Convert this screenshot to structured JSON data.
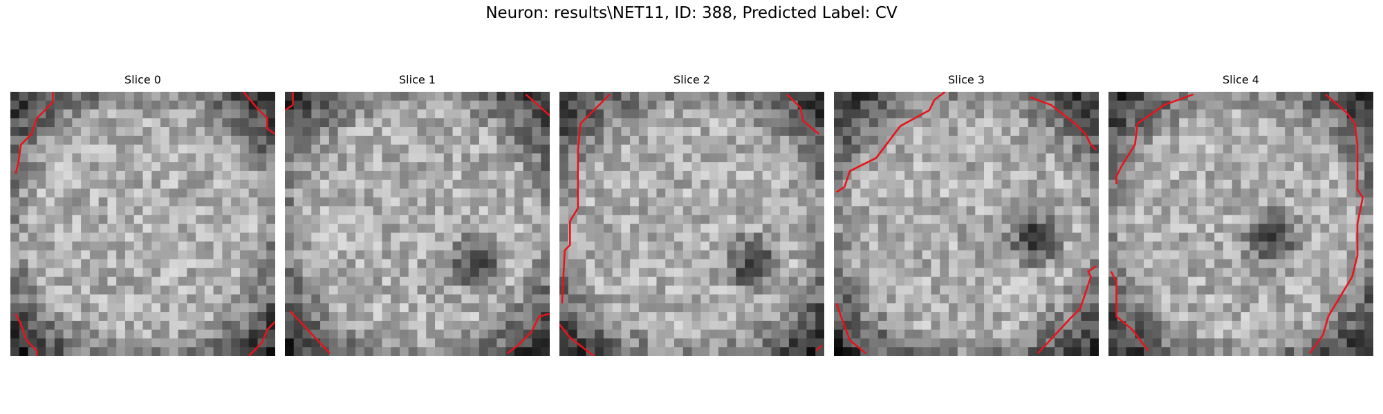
{
  "figure": {
    "title": "Neuron: results\\NET11, ID: 388, Predicted Label: CV",
    "contour_color": "#e8141a",
    "colormap": "gray",
    "panels": [
      {
        "title": "Slice 0",
        "dark_spot": null,
        "contours": [
          [
            [
              0.16,
              0.0
            ],
            [
              0.16,
              0.04
            ],
            [
              0.1,
              0.1
            ],
            [
              0.08,
              0.16
            ],
            [
              0.04,
              0.2
            ],
            [
              0.03,
              0.27
            ],
            [
              0.02,
              0.31
            ]
          ],
          [
            [
              0.88,
              0.0
            ],
            [
              0.93,
              0.06
            ],
            [
              0.97,
              0.1
            ],
            [
              0.97,
              0.14
            ],
            [
              1.0,
              0.16
            ]
          ],
          [
            [
              0.02,
              0.84
            ],
            [
              0.04,
              0.88
            ],
            [
              0.06,
              0.94
            ],
            [
              0.1,
              0.98
            ],
            [
              0.1,
              1.0
            ]
          ],
          [
            [
              0.9,
              1.0
            ],
            [
              0.95,
              0.95
            ],
            [
              0.97,
              0.9
            ],
            [
              1.0,
              0.87
            ]
          ]
        ]
      },
      {
        "title": "Slice 1",
        "dark_spot": [
          0.72,
          0.65
        ],
        "contours": [
          [
            [
              0.03,
              0.0
            ],
            [
              0.03,
              0.05
            ],
            [
              0.0,
              0.07
            ]
          ],
          [
            [
              0.91,
              0.01
            ],
            [
              1.0,
              0.09
            ]
          ],
          [
            [
              0.02,
              0.83
            ],
            [
              0.17,
              0.99
            ]
          ],
          [
            [
              0.84,
              0.99
            ],
            [
              0.88,
              0.96
            ],
            [
              0.93,
              0.91
            ],
            [
              0.96,
              0.85
            ],
            [
              1.0,
              0.84
            ]
          ]
        ]
      },
      {
        "title": "Slice 2",
        "dark_spot": [
          0.73,
          0.65
        ],
        "contours": [
          [
            [
              0.19,
              0.01
            ],
            [
              0.08,
              0.12
            ],
            [
              0.07,
              0.22
            ],
            [
              0.07,
              0.44
            ],
            [
              0.04,
              0.49
            ],
            [
              0.04,
              0.58
            ],
            [
              0.02,
              0.6
            ],
            [
              0.01,
              0.8
            ]
          ],
          [
            [
              0.86,
              0.01
            ],
            [
              0.91,
              0.06
            ],
            [
              0.92,
              0.11
            ],
            [
              0.98,
              0.16
            ]
          ],
          [
            [
              0.0,
              0.88
            ],
            [
              0.04,
              0.93
            ],
            [
              0.13,
              1.0
            ]
          ],
          [
            [
              0.97,
              0.98
            ],
            [
              0.99,
              0.96
            ]
          ]
        ]
      },
      {
        "title": "Slice 3",
        "dark_spot": [
          0.76,
          0.55
        ],
        "contours": [
          [
            [
              0.42,
              0.0
            ],
            [
              0.38,
              0.03
            ],
            [
              0.36,
              0.07
            ],
            [
              0.25,
              0.13
            ],
            [
              0.16,
              0.25
            ],
            [
              0.06,
              0.3
            ],
            [
              0.04,
              0.36
            ],
            [
              0.01,
              0.38
            ]
          ],
          [
            [
              0.74,
              0.02
            ],
            [
              0.82,
              0.05
            ],
            [
              0.91,
              0.12
            ],
            [
              0.95,
              0.16
            ],
            [
              0.97,
              0.2
            ],
            [
              0.99,
              0.22
            ]
          ],
          [
            [
              0.01,
              0.8
            ],
            [
              0.03,
              0.86
            ],
            [
              0.06,
              0.94
            ],
            [
              0.12,
              0.99
            ]
          ],
          [
            [
              0.77,
              0.99
            ],
            [
              0.89,
              0.86
            ],
            [
              0.93,
              0.82
            ],
            [
              0.97,
              0.7
            ],
            [
              0.96,
              0.68
            ],
            [
              0.99,
              0.66
            ]
          ]
        ]
      },
      {
        "title": "Slice 4",
        "dark_spot": [
          0.62,
          0.56
        ],
        "contours": [
          [
            [
              0.32,
              0.01
            ],
            [
              0.21,
              0.05
            ],
            [
              0.11,
              0.12
            ],
            [
              0.1,
              0.2
            ],
            [
              0.05,
              0.28
            ],
            [
              0.03,
              0.32
            ],
            [
              0.03,
              0.35
            ]
          ],
          [
            [
              0.82,
              0.01
            ],
            [
              0.9,
              0.08
            ],
            [
              0.93,
              0.12
            ],
            [
              0.94,
              0.2
            ],
            [
              0.94,
              0.37
            ],
            [
              0.96,
              0.4
            ],
            [
              0.94,
              0.5
            ],
            [
              0.94,
              0.62
            ],
            [
              0.92,
              0.7
            ],
            [
              0.86,
              0.8
            ],
            [
              0.83,
              0.85
            ],
            [
              0.81,
              0.92
            ],
            [
              0.76,
              0.99
            ]
          ],
          [
            [
              0.01,
              0.68
            ],
            [
              0.03,
              0.72
            ],
            [
              0.03,
              0.85
            ],
            [
              0.09,
              0.9
            ],
            [
              0.15,
              0.98
            ]
          ]
        ]
      }
    ]
  }
}
